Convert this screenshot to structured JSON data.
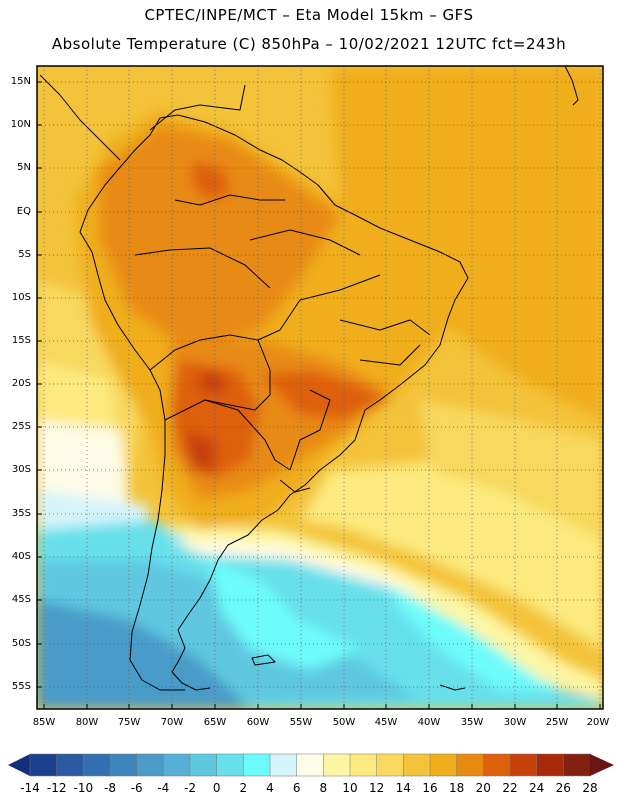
{
  "header": {
    "line1": "CPTEC/INPE/MCT –  Eta Model 15km – GFS",
    "line2": "Absolute Temperature (C) 850hPa – 10/02/2021 12UTC fct=243h"
  },
  "map": {
    "lat_labels": [
      "15N",
      "10N",
      "5N",
      "EQ",
      "5S",
      "10S",
      "15S",
      "20S",
      "25S",
      "30S",
      "35S",
      "40S",
      "45S",
      "50S",
      "55S"
    ],
    "lon_labels": [
      "85W",
      "80W",
      "75W",
      "70W",
      "65W",
      "60W",
      "55W",
      "50W",
      "45W",
      "40W",
      "35W",
      "30W",
      "25W",
      "20W"
    ]
  },
  "colorbar": {
    "labels": [
      "-14",
      "-12",
      "-10",
      "-8",
      "-6",
      "-4",
      "-2",
      "0",
      "2",
      "4",
      "6",
      "8",
      "10",
      "12",
      "14",
      "16",
      "18",
      "20",
      "22",
      "24",
      "26",
      "28"
    ],
    "colors": [
      "#1c3f8f",
      "#2b5aa3",
      "#3470b0",
      "#3d86bd",
      "#4a9bc8",
      "#56b0d6",
      "#5ec8e0",
      "#67e0ec",
      "#6dfcfc",
      "#d5f5fb",
      "#fefbe6",
      "#fdf6a5",
      "#fce97f",
      "#f8d85d",
      "#f3c33b",
      "#f0ad1c",
      "#e88a12",
      "#de610b",
      "#c8400a",
      "#a82a0b",
      "#822010"
    ],
    "under_color": "#14307a",
    "over_color": "#6b1414"
  }
}
